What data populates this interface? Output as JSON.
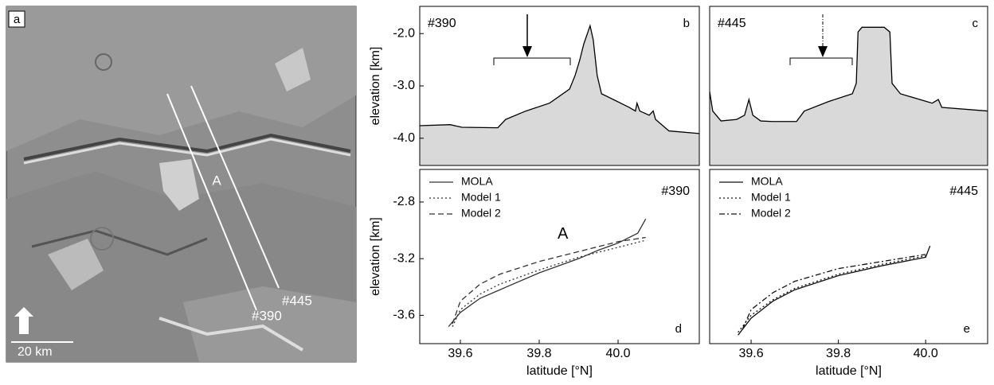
{
  "image_panel": {
    "letter": "a",
    "track_label": "A",
    "tracks": [
      "#390",
      "#445"
    ],
    "scale": "20 km"
  },
  "chart_data": [
    {
      "type": "area",
      "panel": "b",
      "tag": "#390",
      "ylabel": "elevation [km]",
      "xlim": [
        39.497,
        40.206
      ],
      "ylim": [
        -4.52,
        -1.48
      ],
      "yticks": [
        {
          "value": -2,
          "label": "-2.0"
        },
        {
          "value": -3,
          "label": "-3.0"
        },
        {
          "value": -4,
          "label": "-4.0"
        }
      ],
      "series": [
        {
          "color": "#d9d9d9",
          "x": [
            39.497,
            39.574,
            39.604,
            39.695,
            39.715,
            39.766,
            39.826,
            39.877,
            39.891,
            39.903,
            39.913,
            39.929,
            39.937,
            39.947,
            39.958,
            39.988,
            40.028,
            40.044,
            40.048,
            40.055,
            40.079,
            40.089,
            40.095,
            40.129,
            40.206
          ],
          "values": [
            -3.76,
            -3.74,
            -3.79,
            -3.8,
            -3.64,
            -3.48,
            -3.33,
            -3.06,
            -2.8,
            -2.5,
            -2.2,
            -1.85,
            -2.12,
            -2.8,
            -3.15,
            -3.26,
            -3.41,
            -3.48,
            -3.33,
            -3.48,
            -3.56,
            -3.48,
            -3.64,
            -3.86,
            -3.91
          ]
        }
      ]
    },
    {
      "type": "area",
      "panel": "c",
      "tag": "#445",
      "xlim": [
        39.505,
        40.142
      ],
      "ylim": [
        -4.52,
        -1.48
      ],
      "series": [
        {
          "color": "#d9d9d9",
          "x": [
            39.505,
            39.512,
            39.531,
            39.567,
            39.585,
            39.595,
            39.604,
            39.622,
            39.649,
            39.704,
            39.722,
            39.777,
            39.832,
            39.841,
            39.845,
            39.854,
            39.905,
            39.918,
            39.923,
            39.942,
            40.015,
            40.029,
            40.037,
            40.142
          ],
          "values": [
            -3.11,
            -3.48,
            -3.67,
            -3.64,
            -3.56,
            -3.26,
            -3.56,
            -3.67,
            -3.68,
            -3.68,
            -3.48,
            -3.3,
            -3.15,
            -2.95,
            -1.97,
            -1.88,
            -1.88,
            -1.97,
            -2.95,
            -3.15,
            -3.33,
            -3.26,
            -3.41,
            -3.48
          ]
        }
      ]
    },
    {
      "type": "line",
      "panel": "d",
      "tag": "#390",
      "annotation": "A",
      "ylabel": "elevation [km]",
      "xlabel": "latitude [°N]",
      "xlim": [
        39.497,
        40.206
      ],
      "ylim": [
        -3.8,
        -2.57
      ],
      "xticks": [
        39.6,
        39.8,
        {
          "value": 40,
          "label": "40.0"
        }
      ],
      "yticks": [
        -2.8,
        -3.2,
        -3.6
      ],
      "legend": "upper left",
      "series": [
        {
          "name": "MOLA",
          "color": "#333333",
          "dash": "solid",
          "x": [
            39.57,
            39.6,
            39.65,
            39.7,
            39.8,
            39.9,
            39.95,
            40.0,
            40.05,
            40.07
          ],
          "values": [
            -3.68,
            -3.58,
            -3.48,
            -3.42,
            -3.3,
            -3.2,
            -3.14,
            -3.09,
            -3.02,
            -2.92
          ]
        },
        {
          "name": "Model 1",
          "color": "#333333",
          "dash": "dotted",
          "x": [
            39.58,
            39.6,
            39.65,
            39.7,
            39.8,
            39.9,
            40.0,
            40.07
          ],
          "values": [
            -3.68,
            -3.56,
            -3.45,
            -3.38,
            -3.28,
            -3.19,
            -3.12,
            -3.07
          ]
        },
        {
          "name": "Model 2",
          "color": "#333333",
          "dash": "dashed",
          "x": [
            39.58,
            39.6,
            39.65,
            39.7,
            39.8,
            39.9,
            40.0,
            40.07
          ],
          "values": [
            -3.66,
            -3.5,
            -3.38,
            -3.31,
            -3.22,
            -3.15,
            -3.08,
            -3.05
          ]
        }
      ]
    },
    {
      "type": "line",
      "panel": "e",
      "tag": "#445",
      "xlabel": "latitude [°N]",
      "xlim": [
        39.505,
        40.142
      ],
      "ylim": [
        -3.8,
        -2.57
      ],
      "xticks": [
        39.6,
        39.8,
        {
          "value": 40,
          "label": "40.0"
        }
      ],
      "legend": "upper left",
      "series": [
        {
          "name": "MOLA",
          "color": "#111111",
          "dash": "solid",
          "x": [
            39.57,
            39.6,
            39.65,
            39.7,
            39.8,
            39.9,
            40.0,
            40.01
          ],
          "values": [
            -3.74,
            -3.62,
            -3.5,
            -3.42,
            -3.32,
            -3.25,
            -3.19,
            -3.11
          ]
        },
        {
          "name": "Model 1",
          "color": "#111111",
          "dash": "dotted",
          "x": [
            39.57,
            39.6,
            39.65,
            39.7,
            39.8,
            39.9,
            40.0
          ],
          "values": [
            -3.72,
            -3.6,
            -3.49,
            -3.41,
            -3.31,
            -3.24,
            -3.18
          ]
        },
        {
          "name": "Model 2",
          "color": "#111111",
          "dash": "dashdot",
          "x": [
            39.58,
            39.6,
            39.65,
            39.7,
            39.8,
            39.9,
            40.0
          ],
          "values": [
            -3.7,
            -3.56,
            -3.44,
            -3.36,
            -3.27,
            -3.22,
            -3.17
          ]
        }
      ]
    }
  ]
}
